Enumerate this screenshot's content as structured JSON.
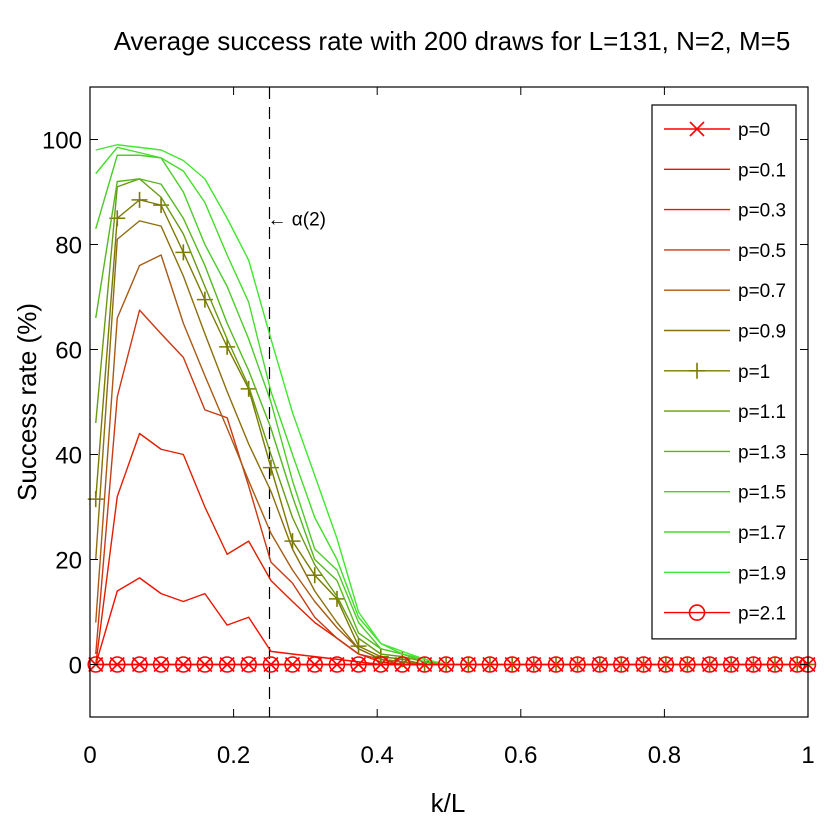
{
  "chart_data": {
    "type": "line",
    "title": "Average success rate with 200 draws for L=131, N=2, M=5",
    "xlabel": "k/L",
    "ylabel": "Success rate (%)",
    "xlim": [
      0,
      1
    ],
    "ylim": [
      -10,
      110
    ],
    "xticks": [
      0,
      0.2,
      0.4,
      0.6,
      0.8,
      1
    ],
    "xtick_labels": [
      "0",
      "0.2",
      "0.4",
      "0.6",
      "0.8",
      "1"
    ],
    "yticks": [
      0,
      20,
      40,
      60,
      80,
      100
    ],
    "ytick_labels": [
      "0",
      "20",
      "40",
      "60",
      "80",
      "100"
    ],
    "grid": false,
    "legend_position": "top-right",
    "vline": {
      "x": 0.25,
      "style": "dashed"
    },
    "annotation": {
      "text": "← α(2)",
      "x": 0.25,
      "y": 85
    },
    "x": [
      0.008,
      0.038,
      0.069,
      0.099,
      0.13,
      0.16,
      0.191,
      0.221,
      0.252,
      0.282,
      0.313,
      0.344,
      0.374,
      0.405,
      0.435,
      0.466,
      0.496,
      0.527,
      0.557,
      0.588,
      0.618,
      0.649,
      0.679,
      0.71,
      0.74,
      0.771,
      0.802,
      0.832,
      0.863,
      0.893,
      0.924,
      0.954,
      0.985,
      1.0
    ],
    "series": [
      {
        "name": "p=0",
        "color": "#ff0000",
        "marker": "x",
        "values": [
          0,
          0,
          0,
          0,
          0,
          0,
          0,
          0,
          0,
          0,
          0,
          0,
          0,
          0,
          0,
          0,
          0,
          0,
          0,
          0,
          0,
          0,
          0,
          0,
          0,
          0,
          0,
          0,
          0,
          0,
          0,
          0,
          0,
          0
        ]
      },
      {
        "name": "p=0.1",
        "color": "#f21000",
        "marker": "none",
        "values": [
          0,
          14,
          16.5,
          13.5,
          12,
          13.5,
          7.5,
          9,
          2.5,
          2,
          1.5,
          1,
          0.5,
          0,
          0,
          0,
          0,
          0,
          0,
          0,
          0,
          0,
          0,
          0,
          0,
          0,
          0,
          0,
          0,
          0,
          0,
          0,
          0,
          0
        ]
      },
      {
        "name": "p=0.3",
        "color": "#e01f00",
        "marker": "none",
        "values": [
          0,
          32,
          44,
          41,
          40,
          30,
          21,
          23.5,
          16,
          12,
          8,
          5,
          2,
          0.5,
          0,
          0,
          0,
          0,
          0,
          0,
          0,
          0,
          0,
          0,
          0,
          0,
          0,
          0,
          0,
          0,
          0,
          0,
          0,
          0
        ]
      },
      {
        "name": "p=0.5",
        "color": "#c83a14",
        "marker": "none",
        "values": [
          2,
          51,
          67.5,
          63,
          58.5,
          48.5,
          47,
          34,
          19.5,
          15.5,
          9,
          5,
          2,
          1,
          0,
          0,
          0,
          0,
          0,
          0,
          0,
          0,
          0,
          0,
          0,
          0,
          0,
          0,
          0,
          0,
          0,
          0,
          0,
          0
        ]
      },
      {
        "name": "p=0.7",
        "color": "#a85a14",
        "marker": "none",
        "values": [
          8,
          66,
          76,
          78,
          65,
          55,
          45,
          35,
          25,
          18,
          12,
          7,
          3,
          1,
          0.5,
          0,
          0,
          0,
          0,
          0,
          0,
          0,
          0,
          0,
          0,
          0,
          0,
          0,
          0,
          0,
          0,
          0,
          0,
          0
        ]
      },
      {
        "name": "p=0.9",
        "color": "#8c6e0c",
        "marker": "none",
        "values": [
          20,
          81,
          84.5,
          83.5,
          74,
          63,
          52,
          42,
          33,
          22,
          14,
          8,
          3,
          1,
          0.5,
          0,
          0,
          0,
          0,
          0,
          0,
          0,
          0,
          0,
          0,
          0,
          0,
          0,
          0,
          0,
          0,
          0,
          0,
          0
        ]
      },
      {
        "name": "p=1",
        "color": "#7a7a00",
        "marker": "+",
        "values": [
          31.5,
          85,
          88.5,
          87.5,
          78.5,
          69.5,
          60.5,
          52.5,
          37.5,
          23.5,
          17,
          12.5,
          3.5,
          1.5,
          1,
          0,
          0,
          0,
          0,
          0,
          0,
          0,
          0,
          0,
          0,
          0,
          0,
          0,
          0,
          0,
          0,
          0,
          0,
          0
        ]
      },
      {
        "name": "p=1.1",
        "color": "#6a9a14",
        "marker": "none",
        "values": [
          46,
          91,
          92.5,
          89,
          82,
          72,
          62,
          53,
          40,
          28,
          19,
          13,
          5,
          2,
          1.5,
          0.5,
          0,
          0,
          0,
          0,
          0,
          0,
          0,
          0,
          0,
          0,
          0,
          0,
          0,
          0,
          0,
          0,
          0,
          0
        ]
      },
      {
        "name": "p=1.3",
        "color": "#56b81e",
        "marker": "none",
        "values": [
          66,
          92,
          92.5,
          91.5,
          85,
          76,
          65,
          56,
          45,
          32,
          20,
          16,
          6,
          3,
          2,
          0.5,
          0,
          0,
          0,
          0,
          0,
          0,
          0,
          0,
          0,
          0,
          0,
          0,
          0,
          0,
          0,
          0,
          0,
          0
        ]
      },
      {
        "name": "p=1.5",
        "color": "#4ccc28",
        "marker": "none",
        "values": [
          83,
          97,
          97,
          96.5,
          90,
          80,
          72,
          62,
          50,
          35,
          22,
          18,
          8,
          3,
          2,
          1,
          0,
          0,
          0,
          0,
          0,
          0,
          0,
          0,
          0,
          0,
          0,
          0,
          0,
          0,
          0,
          0,
          0,
          0
        ]
      },
      {
        "name": "p=1.7",
        "color": "#44dd2a",
        "marker": "none",
        "values": [
          93.5,
          98.5,
          97.5,
          96.5,
          94,
          88,
          78,
          69,
          52,
          40,
          28,
          20,
          9,
          4,
          2,
          1,
          0,
          0,
          0,
          0,
          0,
          0,
          0,
          0,
          0,
          0,
          0,
          0,
          0,
          0,
          0,
          0,
          0,
          0
        ]
      },
      {
        "name": "p=1.9",
        "color": "#40e830",
        "marker": "none",
        "values": [
          98,
          99,
          98.5,
          98,
          96,
          92.5,
          85,
          77,
          62,
          48,
          36,
          24,
          10,
          4,
          2.5,
          1,
          0,
          0,
          0,
          0,
          0,
          0,
          0,
          0,
          0,
          0,
          0,
          0,
          0,
          0,
          0,
          0,
          0,
          0
        ]
      },
      {
        "name": "p=2.1",
        "color": "#ff0000",
        "marker": "o",
        "values": [
          0,
          0,
          0,
          0,
          0,
          0,
          0,
          0,
          0,
          0,
          0,
          0,
          0,
          0,
          0,
          0,
          0,
          0,
          0,
          0,
          0,
          0,
          0,
          0,
          0,
          0,
          0,
          0,
          0,
          0,
          0,
          0,
          0,
          0
        ]
      }
    ]
  }
}
